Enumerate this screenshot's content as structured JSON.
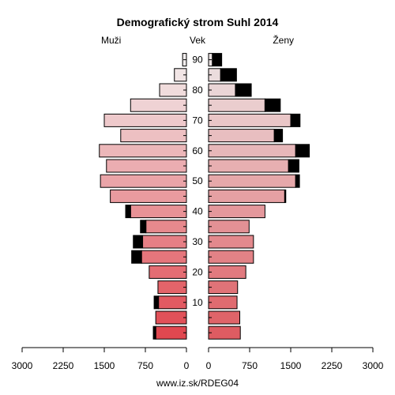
{
  "chart_data": {
    "type": "bar",
    "title": "Demografický strom Suhl 2014",
    "left_label": "Muži",
    "center_label": "Vek",
    "right_label": "Ženy",
    "source": "www.iz.sk/RDEG04",
    "age_groups": [
      "0-4",
      "5-9",
      "10-14",
      "15-19",
      "20-24",
      "25-29",
      "30-34",
      "35-39",
      "40-44",
      "45-49",
      "50-54",
      "55-59",
      "60-64",
      "65-69",
      "70-74",
      "75-79",
      "80-84",
      "85-89",
      "90+"
    ],
    "age_tick_labels": [
      "10",
      "20",
      "30",
      "40",
      "50",
      "60",
      "70",
      "80",
      "90"
    ],
    "age_tick_groups": [
      2,
      4,
      6,
      8,
      10,
      12,
      14,
      16,
      18
    ],
    "x_tick_labels_left": [
      "3000",
      "2250",
      "1500",
      "750",
      "0"
    ],
    "x_tick_labels_right": [
      "0",
      "750",
      "1500",
      "2250",
      "3000"
    ],
    "xlim": [
      0,
      3000
    ],
    "series": [
      {
        "name": "Muži",
        "values": [
          560,
          560,
          510,
          520,
          680,
          820,
          800,
          740,
          1020,
          1390,
          1570,
          1460,
          1590,
          1200,
          1500,
          1020,
          490,
          220,
          70
        ],
        "surplus": [
          45,
          0,
          80,
          0,
          0,
          180,
          170,
          100,
          90,
          0,
          0,
          0,
          0,
          0,
          0,
          0,
          0,
          0,
          0
        ]
      },
      {
        "name": "Ženy",
        "values": [
          580,
          570,
          520,
          530,
          680,
          820,
          820,
          740,
          1030,
          1390,
          1590,
          1460,
          1590,
          1200,
          1500,
          1030,
          490,
          220,
          70
        ],
        "surplus": [
          0,
          0,
          0,
          0,
          0,
          0,
          0,
          0,
          0,
          20,
          70,
          190,
          250,
          150,
          170,
          280,
          290,
          290,
          170
        ]
      }
    ]
  }
}
